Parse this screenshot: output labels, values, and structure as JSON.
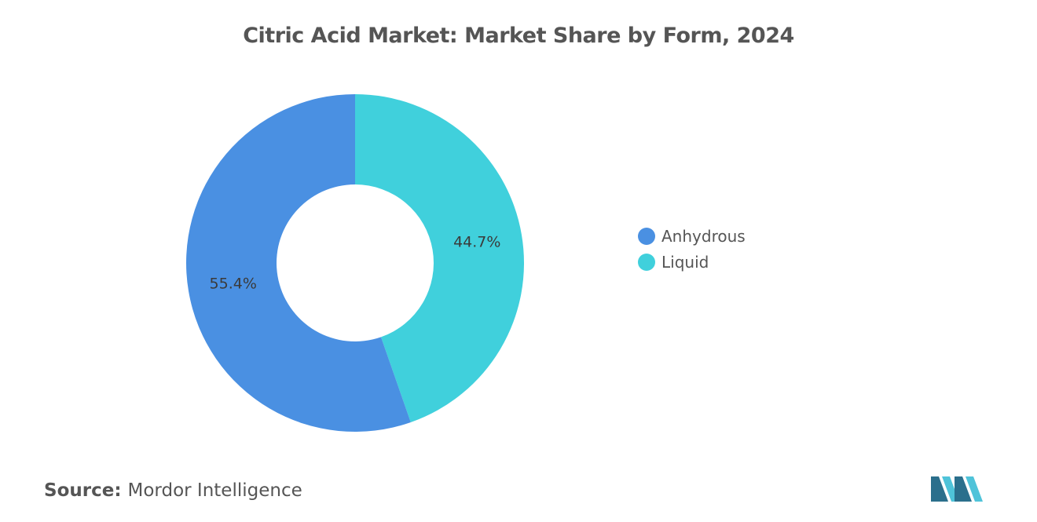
{
  "chart_data": {
    "type": "pie",
    "variant": "donut",
    "title": "Citric Acid Market: Market Share by Form, 2024",
    "categories": [
      "Anhydrous",
      "Liquid"
    ],
    "values": [
      55.4,
      44.7
    ],
    "labels": [
      "55.4%",
      "44.7%"
    ],
    "colors": [
      "#4a90e2",
      "#40d0dc"
    ],
    "legend_position": "right"
  },
  "source": {
    "label": "Source:",
    "text": "Mordor Intelligence"
  },
  "logo": {
    "icon": "mordor-intelligence-logo-icon"
  }
}
